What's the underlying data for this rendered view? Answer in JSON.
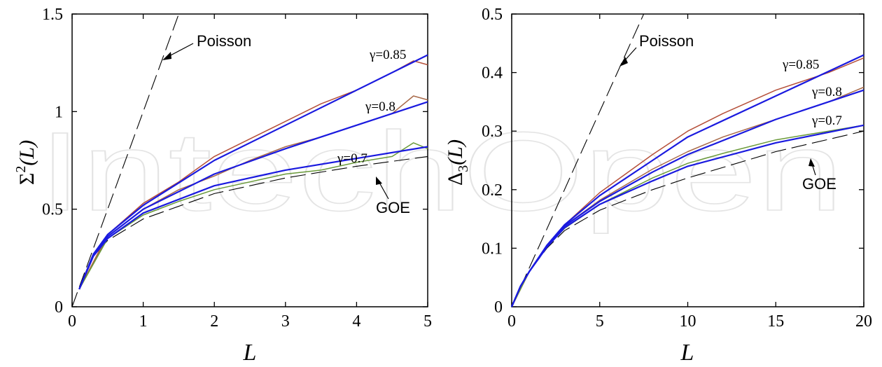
{
  "watermark": "IntechOpen",
  "colors": {
    "model": "#1a1adf",
    "data_085": "#b5503a",
    "data_080": "#a86a4a",
    "data_070": "#6a9a3a",
    "reference": "#000000"
  },
  "chart_data": [
    {
      "type": "line",
      "xlabel": "L",
      "ylabel_main": "Σ",
      "ylabel_sup": "2",
      "ylabel_tail": "(L)",
      "xlim": [
        0,
        5
      ],
      "ylim": [
        0,
        1.5
      ],
      "xticks": [
        0,
        1,
        2,
        3,
        4,
        5
      ],
      "yticks": [
        0,
        0.5,
        1,
        1.5
      ],
      "xtick_labels": [
        "0",
        "1",
        "2",
        "3",
        "4",
        "5"
      ],
      "ytick_labels": [
        "0",
        "0.5",
        "1",
        "1.5"
      ],
      "annotations": {
        "poisson": "Poisson",
        "goe": "GOE",
        "g085": "γ=0.85",
        "g080": "γ=0.8",
        "g070": "γ=0.7"
      },
      "series": [
        {
          "name": "Poisson",
          "style": "dashed",
          "x": [
            0,
            0.5,
            1.0,
            1.25,
            1.5
          ],
          "y": [
            0,
            0.5,
            1.0,
            1.25,
            1.5
          ]
        },
        {
          "name": "GOE",
          "style": "dashed",
          "x": [
            0.1,
            0.3,
            0.5,
            1.0,
            2.0,
            3.0,
            4.0,
            5.0
          ],
          "y": [
            0.09,
            0.26,
            0.34,
            0.45,
            0.58,
            0.66,
            0.72,
            0.77
          ]
        },
        {
          "name": "γ=0.85",
          "style": "model",
          "x": [
            0.1,
            0.3,
            0.5,
            1.0,
            2.0,
            3.0,
            4.0,
            5.0
          ],
          "y": [
            0.09,
            0.27,
            0.37,
            0.52,
            0.75,
            0.93,
            1.11,
            1.29
          ]
        },
        {
          "name": "γ=0.8",
          "style": "model",
          "x": [
            0.1,
            0.3,
            0.5,
            1.0,
            2.0,
            3.0,
            4.0,
            5.0
          ],
          "y": [
            0.09,
            0.27,
            0.36,
            0.5,
            0.68,
            0.81,
            0.93,
            1.05
          ]
        },
        {
          "name": "γ=0.7",
          "style": "model",
          "x": [
            0.1,
            0.3,
            0.5,
            1.0,
            2.0,
            3.0,
            4.0,
            5.0
          ],
          "y": [
            0.09,
            0.26,
            0.35,
            0.48,
            0.62,
            0.7,
            0.76,
            0.82
          ]
        },
        {
          "name": "γ=0.85",
          "style": "data085",
          "x": [
            0.1,
            0.5,
            1.0,
            1.5,
            2.0,
            2.5,
            3.0,
            3.5,
            4.0,
            4.5,
            4.8,
            5.0
          ],
          "y": [
            0.09,
            0.37,
            0.53,
            0.64,
            0.77,
            0.86,
            0.95,
            1.04,
            1.11,
            1.2,
            1.26,
            1.24
          ]
        },
        {
          "name": "γ=0.8",
          "style": "data080",
          "x": [
            0.1,
            0.5,
            1.0,
            1.5,
            2.0,
            2.5,
            3.0,
            3.5,
            4.0,
            4.5,
            4.8,
            5.0
          ],
          "y": [
            0.09,
            0.36,
            0.5,
            0.6,
            0.67,
            0.75,
            0.82,
            0.87,
            0.93,
            0.99,
            1.08,
            1.06
          ]
        },
        {
          "name": "γ=0.7",
          "style": "data070",
          "x": [
            0.1,
            0.5,
            1.0,
            1.5,
            2.0,
            2.5,
            3.0,
            3.5,
            4.0,
            4.5,
            4.8,
            5.0
          ],
          "y": [
            0.09,
            0.35,
            0.47,
            0.54,
            0.6,
            0.64,
            0.68,
            0.7,
            0.74,
            0.77,
            0.84,
            0.81
          ]
        }
      ]
    },
    {
      "type": "line",
      "xlabel": "L",
      "ylabel_main": "Δ",
      "ylabel_sub": "3",
      "ylabel_tail": "(L)",
      "xlim": [
        0,
        20
      ],
      "ylim": [
        0,
        0.5
      ],
      "xticks": [
        0,
        5,
        10,
        15,
        20
      ],
      "yticks": [
        0,
        0.1,
        0.2,
        0.3,
        0.4,
        0.5
      ],
      "xtick_labels": [
        "0",
        "5",
        "10",
        "15",
        "20"
      ],
      "ytick_labels": [
        "0",
        "0.1",
        "0.2",
        "0.3",
        "0.4",
        "0.5"
      ],
      "annotations": {
        "poisson": "Poisson",
        "goe": "GOE",
        "g085": "γ=0.85",
        "g080": "γ=0.8",
        "g070": "γ=0.7"
      },
      "series": [
        {
          "name": "Poisson",
          "style": "dashed",
          "x": [
            0,
            2,
            4,
            6,
            7.5
          ],
          "y": [
            0,
            0.133,
            0.267,
            0.4,
            0.5
          ]
        },
        {
          "name": "GOE",
          "style": "dashed",
          "x": [
            0,
            0.5,
            1,
            2,
            3,
            5,
            8,
            10,
            15,
            20
          ],
          "y": [
            0,
            0.035,
            0.06,
            0.1,
            0.13,
            0.165,
            0.2,
            0.22,
            0.265,
            0.3
          ]
        },
        {
          "name": "γ=0.85",
          "style": "model",
          "x": [
            0,
            0.5,
            1,
            2,
            3,
            5,
            8,
            10,
            15,
            20
          ],
          "y": [
            0,
            0.035,
            0.06,
            0.105,
            0.14,
            0.19,
            0.25,
            0.29,
            0.36,
            0.43
          ]
        },
        {
          "name": "γ=0.8",
          "style": "model",
          "x": [
            0,
            0.5,
            1,
            2,
            3,
            5,
            8,
            10,
            15,
            20
          ],
          "y": [
            0,
            0.035,
            0.06,
            0.104,
            0.138,
            0.18,
            0.23,
            0.26,
            0.32,
            0.37
          ]
        },
        {
          "name": "γ=0.7",
          "style": "model",
          "x": [
            0,
            0.5,
            1,
            2,
            3,
            5,
            8,
            10,
            15,
            20
          ],
          "y": [
            0,
            0.035,
            0.06,
            0.102,
            0.135,
            0.175,
            0.215,
            0.24,
            0.28,
            0.31
          ]
        },
        {
          "name": "γ=0.85",
          "style": "data085",
          "x": [
            0,
            1,
            2,
            3,
            5,
            8,
            10,
            12,
            15,
            18,
            20
          ],
          "y": [
            0,
            0.06,
            0.105,
            0.14,
            0.195,
            0.26,
            0.3,
            0.33,
            0.37,
            0.4,
            0.425
          ]
        },
        {
          "name": "γ=0.8",
          "style": "data080",
          "x": [
            0,
            1,
            2,
            3,
            5,
            8,
            10,
            12,
            15,
            18,
            20
          ],
          "y": [
            0,
            0.06,
            0.104,
            0.138,
            0.182,
            0.235,
            0.265,
            0.29,
            0.32,
            0.35,
            0.375
          ]
        },
        {
          "name": "γ=0.7",
          "style": "data070",
          "x": [
            0,
            1,
            2,
            3,
            5,
            8,
            10,
            12,
            15,
            18,
            20
          ],
          "y": [
            0,
            0.06,
            0.102,
            0.134,
            0.175,
            0.22,
            0.245,
            0.262,
            0.285,
            0.3,
            0.31
          ]
        }
      ]
    }
  ]
}
